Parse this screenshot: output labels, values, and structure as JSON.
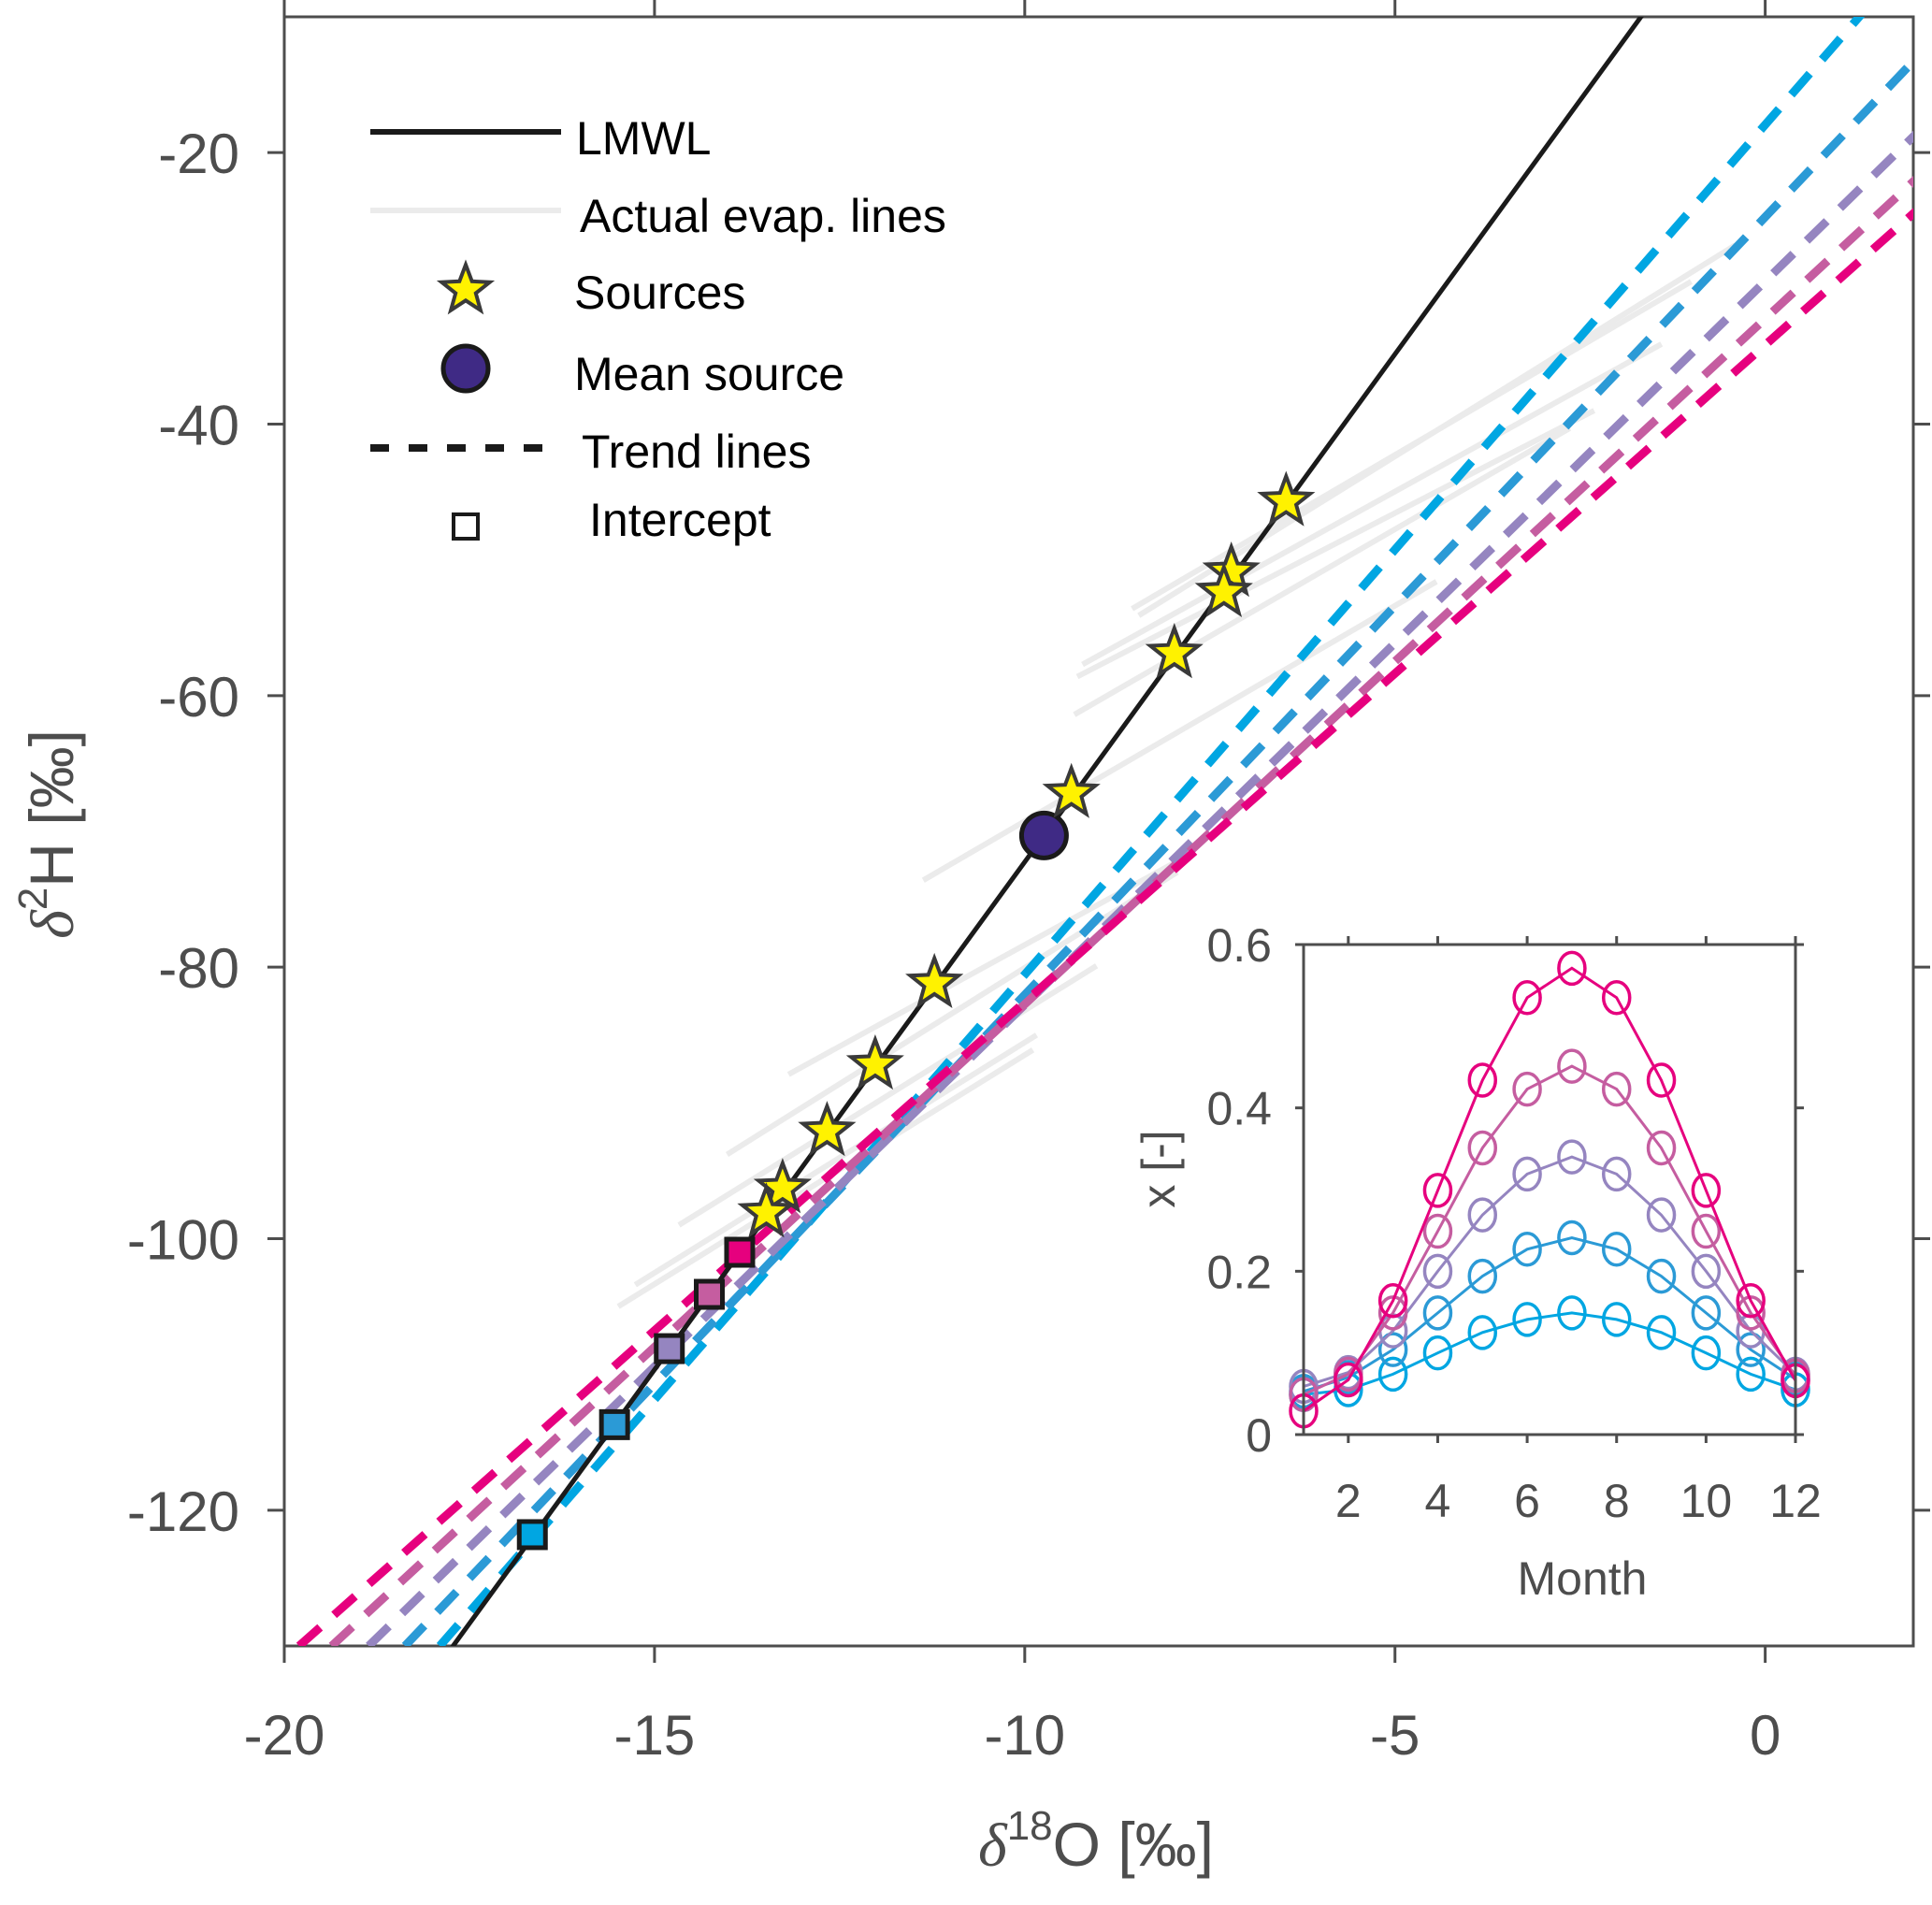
{
  "chart_data": [
    {
      "type": "line",
      "panel": "main",
      "title": "",
      "xlabel": {
        "prefix": "δ",
        "sup": "18",
        "main": "O [‰]"
      },
      "ylabel": {
        "prefix": "δ",
        "sup": "2",
        "main": "H [‰]"
      },
      "xlim": [
        -20,
        2
      ],
      "ylim": [
        -130,
        -10
      ],
      "xticks": [
        -20,
        -15,
        -10,
        -5,
        0
      ],
      "xtick_labels": [
        "-20",
        "-15",
        "-10",
        "-5",
        "0"
      ],
      "yticks": [
        -120,
        -100,
        -80,
        -60,
        -40,
        -20
      ],
      "ytick_labels": [
        "-120",
        "-100",
        "-80",
        "-60",
        "-40",
        "-20"
      ],
      "grid": false,
      "legend_position": "top-left",
      "legend": [
        {
          "key": "lmwl",
          "label": "LMWL",
          "symbol": "solid-line"
        },
        {
          "key": "evap",
          "label": "Actual evap. lines",
          "symbol": "gray-line"
        },
        {
          "key": "sources",
          "label": "Sources",
          "symbol": "star"
        },
        {
          "key": "mean",
          "label": "Mean source",
          "symbol": "circle"
        },
        {
          "key": "trend",
          "label": "Trend lines",
          "symbol": "dashed-line"
        },
        {
          "key": "intercept",
          "label": "Intercept",
          "symbol": "square"
        }
      ],
      "lmwl": {
        "slope": 7.48,
        "intercept": 2.55,
        "color": "#1a1a1a"
      },
      "sources": [
        {
          "x": -6.47,
          "y": -45.7
        },
        {
          "x": -7.21,
          "y": -50.9
        },
        {
          "x": -7.31,
          "y": -52.4
        },
        {
          "x": -7.98,
          "y": -56.9
        },
        {
          "x": -9.37,
          "y": -67.2
        },
        {
          "x": -11.22,
          "y": -81.2
        },
        {
          "x": -12.02,
          "y": -87.2
        },
        {
          "x": -12.67,
          "y": -92.1
        },
        {
          "x": -13.27,
          "y": -96.3
        },
        {
          "x": -13.49,
          "y": -98.1
        }
      ],
      "mean_source": {
        "x": -9.74,
        "y": -70.3
      },
      "evap_lines": [
        [
          [
            -8.46,
            -54.1
          ],
          [
            -0.4,
            -26.8
          ]
        ],
        [
          [
            -8.55,
            -53.6
          ],
          [
            -1.0,
            -29.5
          ]
        ],
        [
          [
            -9.22,
            -57.7
          ],
          [
            -1.4,
            -34.1
          ]
        ],
        [
          [
            -9.29,
            -58.6
          ],
          [
            -2.31,
            -39.0
          ]
        ],
        [
          [
            -9.33,
            -61.4
          ],
          [
            -2.64,
            -40.3
          ]
        ],
        [
          [
            -11.37,
            -73.6
          ],
          [
            -4.44,
            -51.6
          ]
        ],
        [
          [
            -13.19,
            -87.9
          ],
          [
            -7.94,
            -72.2
          ]
        ],
        [
          [
            -14.02,
            -93.8
          ],
          [
            -7.94,
            -73.0
          ]
        ],
        [
          [
            -14.67,
            -99.0
          ],
          [
            -9.03,
            -79.9
          ]
        ],
        [
          [
            -15.26,
            -103.4
          ],
          [
            -9.84,
            -85.0
          ]
        ],
        [
          [
            -15.49,
            -105.0
          ],
          [
            -9.89,
            -86.1
          ]
        ]
      ],
      "evap_color": "#ebebeb",
      "trend_lines": [
        {
          "name": "series-1",
          "color": "#00a6e2",
          "x0": -17.9,
          "slope": 6.26,
          "intercept_point": {
            "x": -16.65,
            "y": -121.8
          }
        },
        {
          "name": "series-2",
          "color": "#2b9ad6",
          "x0": -18.37,
          "slope": 5.73,
          "intercept_point": {
            "x": -15.54,
            "y": -113.7
          }
        },
        {
          "name": "series-3",
          "color": "#9585c0",
          "x0": -18.86,
          "slope": 5.33,
          "intercept_point": {
            "x": -14.8,
            "y": -108.1
          }
        },
        {
          "name": "series-4",
          "color": "#c55da0",
          "x0": -19.36,
          "slope": 5.05,
          "intercept_point": {
            "x": -14.26,
            "y": -104.1
          }
        },
        {
          "name": "series-5",
          "color": "#e6007e",
          "x0": -19.8,
          "slope": 4.84,
          "intercept_point": {
            "x": -13.85,
            "y": -101.0
          }
        }
      ]
    },
    {
      "type": "line",
      "panel": "inset",
      "xlabel": "Month",
      "ylabel": "x [-]",
      "xlim": [
        1,
        12
      ],
      "ylim": [
        0,
        0.6
      ],
      "xticks": [
        2,
        4,
        6,
        8,
        10,
        12
      ],
      "xtick_labels": [
        "2",
        "4",
        "6",
        "8",
        "10",
        "12"
      ],
      "yticks": [
        0,
        0.2,
        0.4,
        0.6
      ],
      "ytick_labels": [
        "0",
        "0.2",
        "0.4",
        "0.6"
      ],
      "grid": false,
      "x": [
        1,
        2,
        3,
        4,
        5,
        6,
        7,
        8,
        9,
        10,
        11,
        12
      ],
      "series": [
        {
          "name": "series-1",
          "color": "#00a6e2",
          "values": [
            0.049,
            0.055,
            0.074,
            0.1,
            0.125,
            0.141,
            0.149,
            0.141,
            0.125,
            0.1,
            0.074,
            0.055
          ]
        },
        {
          "name": "series-2",
          "color": "#2b9ad6",
          "values": [
            0.053,
            0.07,
            0.104,
            0.149,
            0.194,
            0.227,
            0.241,
            0.227,
            0.194,
            0.149,
            0.104,
            0.068
          ]
        },
        {
          "name": "series-3",
          "color": "#9585c0",
          "values": [
            0.059,
            0.076,
            0.127,
            0.2,
            0.269,
            0.319,
            0.34,
            0.319,
            0.269,
            0.2,
            0.127,
            0.074
          ]
        },
        {
          "name": "series-4",
          "color": "#c55da0",
          "values": [
            0.049,
            0.074,
            0.149,
            0.249,
            0.351,
            0.423,
            0.451,
            0.423,
            0.351,
            0.249,
            0.149,
            0.072
          ]
        },
        {
          "name": "series-5",
          "color": "#e6007e",
          "values": [
            0.029,
            0.067,
            0.164,
            0.299,
            0.434,
            0.535,
            0.571,
            0.535,
            0.434,
            0.299,
            0.164,
            0.066
          ]
        }
      ]
    }
  ],
  "colors": {
    "axis": "#4d4d4d",
    "star_fill": "#fff200",
    "star_stroke": "#3a3a3a",
    "mean_fill": "#3f2a85",
    "marker_stroke": "#1a1a1a"
  }
}
